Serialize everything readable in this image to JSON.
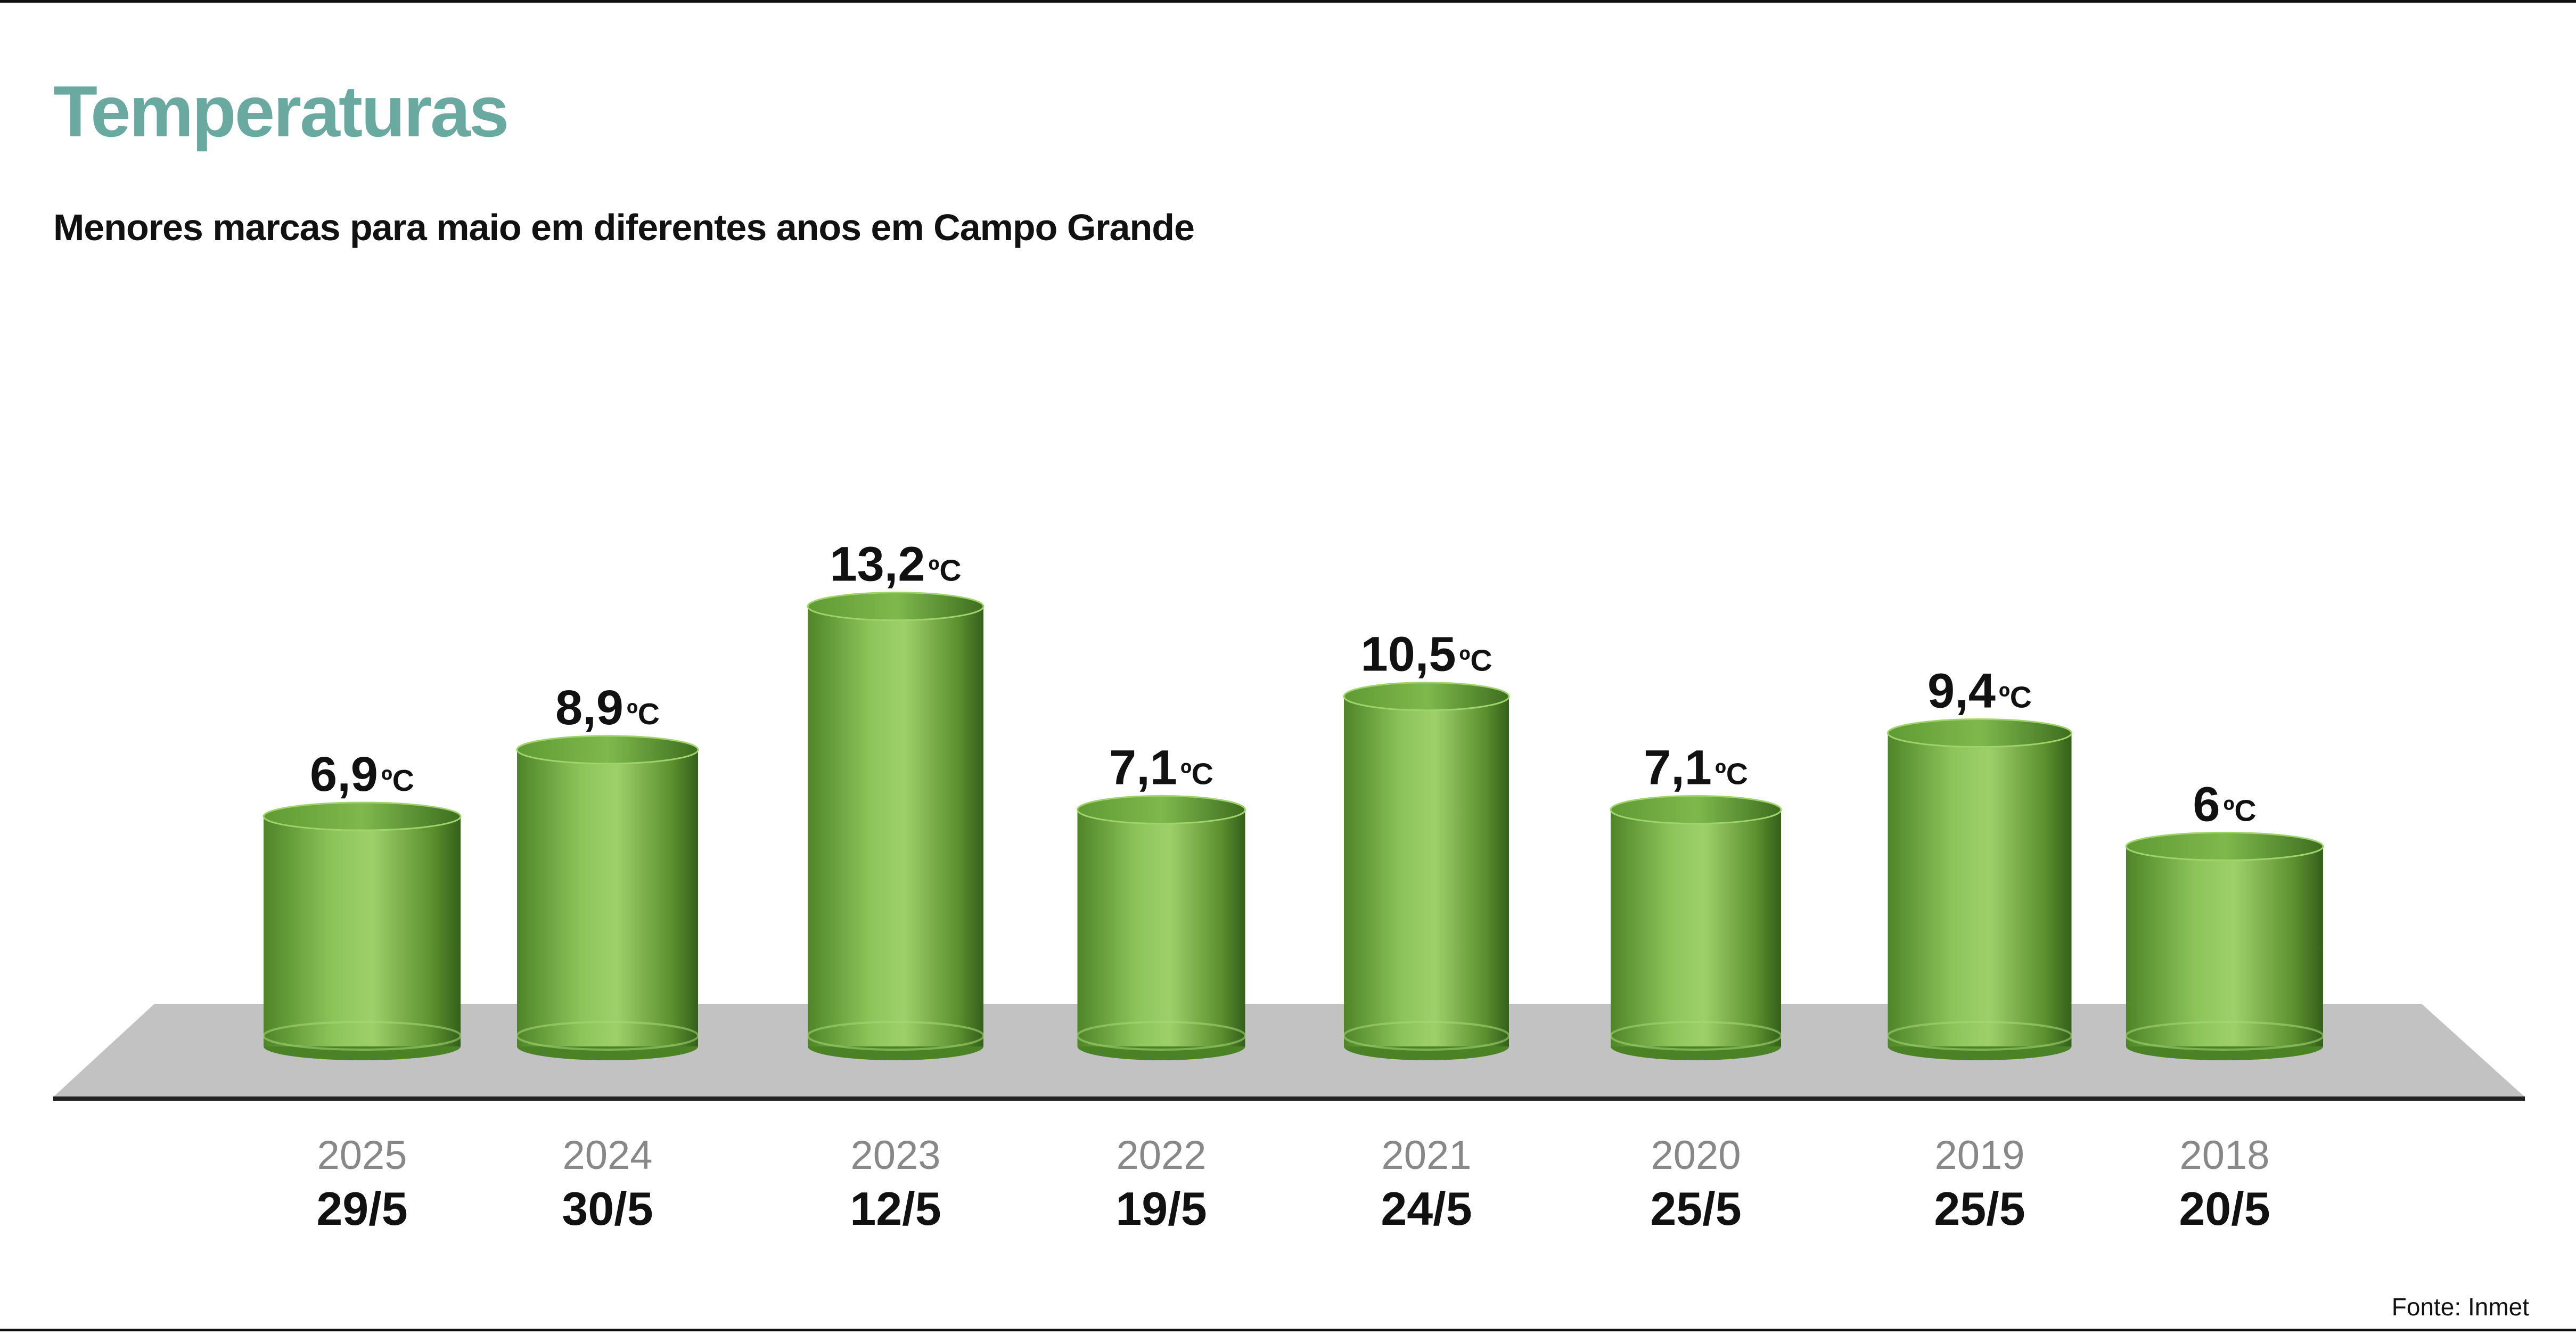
{
  "header": {
    "title": "Temperaturas",
    "subtitle": "Menores marcas para maio em diferentes anos em Campo Grande"
  },
  "footer": {
    "source": "Fonte: Inmet"
  },
  "colors": {
    "title": "#6aa9a0",
    "bar_dark": "#3b6a1d",
    "bar_mid": "#6aa73c",
    "bar_light": "#9ed06a",
    "floor": "#c2c2c2"
  },
  "chart_data": {
    "type": "bar",
    "style": "3d-cylinder",
    "title": "Temperaturas",
    "subtitle": "Menores marcas para maio em diferentes anos em Campo Grande",
    "unit_suffix": "ºC",
    "categories": [
      "2025",
      "2024",
      "2023",
      "2022",
      "2021",
      "2020",
      "2019",
      "2018"
    ],
    "dates": [
      "29/5",
      "30/5",
      "12/5",
      "19/5",
      "24/5",
      "25/5",
      "25/5",
      "20/5"
    ],
    "values": [
      6.9,
      8.9,
      13.2,
      7.1,
      10.5,
      7.1,
      9.4,
      6.0
    ],
    "value_labels": [
      "6,9",
      "8,9",
      "13,2",
      "7,1",
      "10,5",
      "7,1",
      "9,4",
      "6"
    ],
    "grid": false,
    "legend": "none",
    "source": "Fonte: Inmet"
  }
}
